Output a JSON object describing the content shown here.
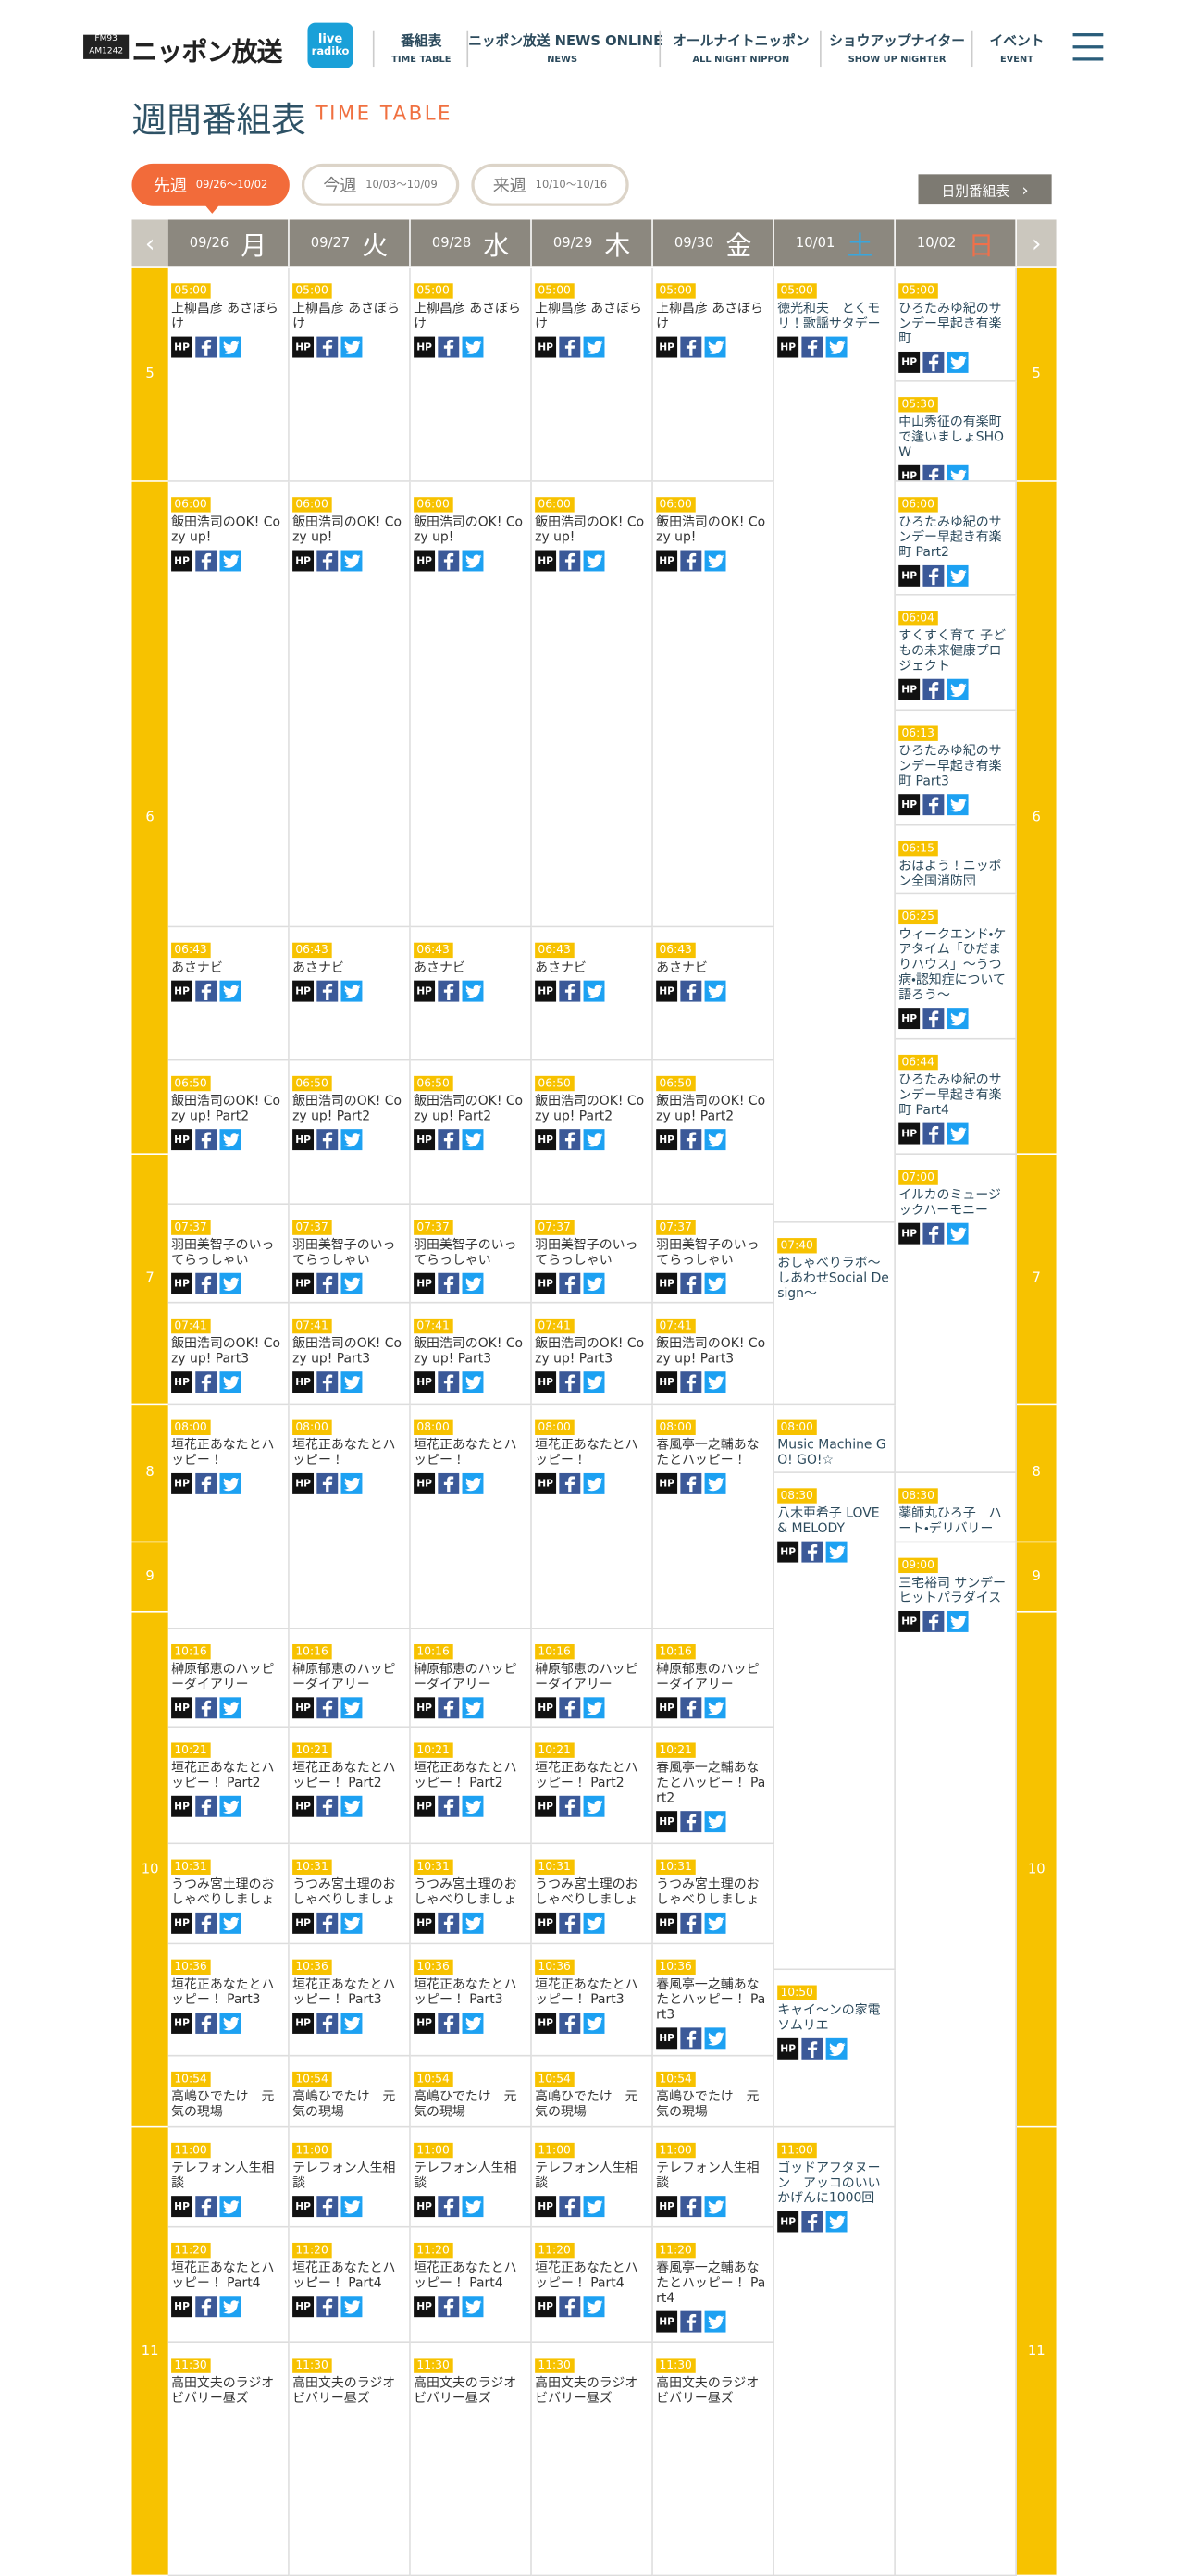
{
  "header": {
    "logo_sub": [
      "FM93",
      "AM1242"
    ],
    "logo": "ニッポン放送",
    "radiko": [
      "live",
      "radiko"
    ],
    "nav": [
      {
        "label": "番組表",
        "sub": "TIME TABLE"
      },
      {
        "label": "ニッポン放送 NEWS ONLINE",
        "sub": "NEWS"
      },
      {
        "label": "オールナイトニッポン",
        "sub": "ALL NIGHT NIPPON"
      },
      {
        "label": "ショウアップナイター",
        "sub": "SHOW UP NIGHTER"
      },
      {
        "label": "イベント",
        "sub": "EVENT"
      }
    ]
  },
  "title": "週間番組表",
  "title_en": "TIME TABLE",
  "weeks": [
    {
      "label": "先週",
      "range": "09/26〜10/02",
      "active": true
    },
    {
      "label": "今週",
      "range": "10/03〜10/09",
      "active": false
    },
    {
      "label": "来週",
      "range": "10/10〜10/16",
      "active": false
    }
  ],
  "daily_button": "日別番組表",
  "hp_label": "HP",
  "hours": [
    5,
    6,
    7,
    8,
    9,
    10,
    11
  ],
  "days": [
    {
      "date": "09/26",
      "weekday": "月",
      "programs": [
        {
          "time": "05:00",
          "title": "上柳昌彦 あさぼらけ",
          "sns": true
        },
        {
          "time": "06:00",
          "title": "飯田浩司のOK! Cozy up!",
          "sns": true
        },
        {
          "time": "06:43",
          "title": "あさナビ",
          "sns": true
        },
        {
          "time": "06:50",
          "title": "飯田浩司のOK! Cozy up! Part2",
          "sns": true
        },
        {
          "time": "07:37",
          "title": "羽田美智子のいってらっしゃい",
          "sns": true
        },
        {
          "time": "07:41",
          "title": "飯田浩司のOK! Cozy up! Part3",
          "sns": true
        },
        {
          "time": "08:00",
          "title": "垣花正あなたとハッピー！",
          "sns": true
        },
        {
          "time": "10:16",
          "title": "榊原郁恵のハッピーダイアリー",
          "sns": true
        },
        {
          "time": "10:21",
          "title": "垣花正あなたとハッピー！ Part2",
          "sns": true
        },
        {
          "time": "10:31",
          "title": "うつみ宮土理のおしゃべりしましょ",
          "sns": true
        },
        {
          "time": "10:36",
          "title": "垣花正あなたとハッピー！ Part3",
          "sns": true
        },
        {
          "time": "10:54",
          "title": "高嶋ひでたけ　元気の現場",
          "sns": false
        },
        {
          "time": "11:00",
          "title": "テレフォン人生相談",
          "sns": true
        },
        {
          "time": "11:20",
          "title": "垣花正あなたとハッピー！ Part4",
          "sns": true
        },
        {
          "time": "11:30",
          "title": "高田文夫のラジオビバリー昼ズ",
          "sns": false
        }
      ]
    },
    {
      "date": "09/27",
      "weekday": "火",
      "programs": [
        {
          "time": "05:00",
          "title": "上柳昌彦 あさぼらけ",
          "sns": true
        },
        {
          "time": "06:00",
          "title": "飯田浩司のOK! Cozy up!",
          "sns": true
        },
        {
          "time": "06:43",
          "title": "あさナビ",
          "sns": true
        },
        {
          "time": "06:50",
          "title": "飯田浩司のOK! Cozy up! Part2",
          "sns": true
        },
        {
          "time": "07:37",
          "title": "羽田美智子のいってらっしゃい",
          "sns": true
        },
        {
          "time": "07:41",
          "title": "飯田浩司のOK! Cozy up! Part3",
          "sns": true
        },
        {
          "time": "08:00",
          "title": "垣花正あなたとハッピー！",
          "sns": true
        },
        {
          "time": "10:16",
          "title": "榊原郁恵のハッピーダイアリー",
          "sns": true
        },
        {
          "time": "10:21",
          "title": "垣花正あなたとハッピー！ Part2",
          "sns": true
        },
        {
          "time": "10:31",
          "title": "うつみ宮土理のおしゃべりしましょ",
          "sns": true
        },
        {
          "time": "10:36",
          "title": "垣花正あなたとハッピー！ Part3",
          "sns": true
        },
        {
          "time": "10:54",
          "title": "高嶋ひでたけ　元気の現場",
          "sns": false
        },
        {
          "time": "11:00",
          "title": "テレフォン人生相談",
          "sns": true
        },
        {
          "time": "11:20",
          "title": "垣花正あなたとハッピー！ Part4",
          "sns": true
        },
        {
          "time": "11:30",
          "title": "高田文夫のラジオビバリー昼ズ",
          "sns": false
        }
      ]
    },
    {
      "date": "09/28",
      "weekday": "水",
      "programs": [
        {
          "time": "05:00",
          "title": "上柳昌彦 あさぼらけ",
          "sns": true
        },
        {
          "time": "06:00",
          "title": "飯田浩司のOK! Cozy up!",
          "sns": true
        },
        {
          "time": "06:43",
          "title": "あさナビ",
          "sns": true
        },
        {
          "time": "06:50",
          "title": "飯田浩司のOK! Cozy up! Part2",
          "sns": true
        },
        {
          "time": "07:37",
          "title": "羽田美智子のいってらっしゃい",
          "sns": true
        },
        {
          "time": "07:41",
          "title": "飯田浩司のOK! Cozy up! Part3",
          "sns": true
        },
        {
          "time": "08:00",
          "title": "垣花正あなたとハッピー！",
          "sns": true
        },
        {
          "time": "10:16",
          "title": "榊原郁恵のハッピーダイアリー",
          "sns": true
        },
        {
          "time": "10:21",
          "title": "垣花正あなたとハッピー！ Part2",
          "sns": true
        },
        {
          "time": "10:31",
          "title": "うつみ宮土理のおしゃべりしましょ",
          "sns": true
        },
        {
          "time": "10:36",
          "title": "垣花正あなたとハッピー！ Part3",
          "sns": true
        },
        {
          "time": "10:54",
          "title": "高嶋ひでたけ　元気の現場",
          "sns": false
        },
        {
          "time": "11:00",
          "title": "テレフォン人生相談",
          "sns": true
        },
        {
          "time": "11:20",
          "title": "垣花正あなたとハッピー！ Part4",
          "sns": true
        },
        {
          "time": "11:30",
          "title": "高田文夫のラジオビバリー昼ズ",
          "sns": false
        }
      ]
    },
    {
      "date": "09/29",
      "weekday": "木",
      "programs": [
        {
          "time": "05:00",
          "title": "上柳昌彦 あさぼらけ",
          "sns": true
        },
        {
          "time": "06:00",
          "title": "飯田浩司のOK! Cozy up!",
          "sns": true
        },
        {
          "time": "06:43",
          "title": "あさナビ",
          "sns": true
        },
        {
          "time": "06:50",
          "title": "飯田浩司のOK! Cozy up! Part2",
          "sns": true
        },
        {
          "time": "07:37",
          "title": "羽田美智子のいってらっしゃい",
          "sns": true
        },
        {
          "time": "07:41",
          "title": "飯田浩司のOK! Cozy up! Part3",
          "sns": true
        },
        {
          "time": "08:00",
          "title": "垣花正あなたとハッピー！",
          "sns": true
        },
        {
          "time": "10:16",
          "title": "榊原郁恵のハッピーダイアリー",
          "sns": true
        },
        {
          "time": "10:21",
          "title": "垣花正あなたとハッピー！ Part2",
          "sns": true
        },
        {
          "time": "10:31",
          "title": "うつみ宮土理のおしゃべりしましょ",
          "sns": true
        },
        {
          "time": "10:36",
          "title": "垣花正あなたとハッピー！ Part3",
          "sns": true
        },
        {
          "time": "10:54",
          "title": "高嶋ひでたけ　元気の現場",
          "sns": false
        },
        {
          "time": "11:00",
          "title": "テレフォン人生相談",
          "sns": true
        },
        {
          "time": "11:20",
          "title": "垣花正あなたとハッピー！ Part4",
          "sns": true
        },
        {
          "time": "11:30",
          "title": "高田文夫のラジオビバリー昼ズ",
          "sns": false
        }
      ]
    },
    {
      "date": "09/30",
      "weekday": "金",
      "programs": [
        {
          "time": "05:00",
          "title": "上柳昌彦 あさぼらけ",
          "sns": true
        },
        {
          "time": "06:00",
          "title": "飯田浩司のOK! Cozy up!",
          "sns": true
        },
        {
          "time": "06:43",
          "title": "あさナビ",
          "sns": true
        },
        {
          "time": "06:50",
          "title": "飯田浩司のOK! Cozy up! Part2",
          "sns": true
        },
        {
          "time": "07:37",
          "title": "羽田美智子のいってらっしゃい",
          "sns": true
        },
        {
          "time": "07:41",
          "title": "飯田浩司のOK! Cozy up! Part3",
          "sns": true
        },
        {
          "time": "08:00",
          "title": "春風亭一之輔あなたとハッピー！",
          "sns": true
        },
        {
          "time": "10:16",
          "title": "榊原郁恵のハッピーダイアリー",
          "sns": true
        },
        {
          "time": "10:21",
          "title": "春風亭一之輔あなたとハッピー！ Part2",
          "sns": true
        },
        {
          "time": "10:31",
          "title": "うつみ宮土理のおしゃべりしましょ",
          "sns": true
        },
        {
          "time": "10:36",
          "title": "春風亭一之輔あなたとハッピー！ Part3",
          "sns": true
        },
        {
          "time": "10:54",
          "title": "高嶋ひでたけ　元気の現場",
          "sns": false
        },
        {
          "time": "11:00",
          "title": "テレフォン人生相談",
          "sns": true
        },
        {
          "time": "11:20",
          "title": "春風亭一之輔あなたとハッピー！ Part4",
          "sns": true
        },
        {
          "time": "11:30",
          "title": "高田文夫のラジオビバリー昼ズ",
          "sns": false
        }
      ]
    },
    {
      "date": "10/01",
      "weekday": "土",
      "programs": [
        {
          "time": "05:00",
          "title": "徳光和夫　とくモリ！歌謡サタデー",
          "sns": true
        },
        {
          "time": "07:40",
          "title": "おしゃべりラボ〜しあわせSocial Design〜",
          "sns": false
        },
        {
          "time": "08:00",
          "title": "Music Machine GO! GO!☆",
          "sns": false
        },
        {
          "time": "08:30",
          "title": "八木亜希子 LOVE & MELODY",
          "sns": true
        },
        {
          "time": "10:50",
          "title": "キャイ〜ンの家電ソムリエ",
          "sns": true
        },
        {
          "time": "11:00",
          "title": "ゴッドアフタヌーン　アッコのいいかげんに1000回",
          "sns": true
        }
      ]
    },
    {
      "date": "10/02",
      "weekday": "日",
      "programs": [
        {
          "time": "05:00",
          "title": "ひろたみゆ紀のサンデー早起き有楽町",
          "sns": true
        },
        {
          "time": "05:30",
          "title": "中山秀征の有楽町で逢いましょSHOW",
          "sns": true
        },
        {
          "time": "06:00",
          "title": "ひろたみゆ紀のサンデー早起き有楽町 Part2",
          "sns": true
        },
        {
          "time": "06:04",
          "title": "すくすく育て 子どもの未来健康プロジェクト",
          "sns": true
        },
        {
          "time": "06:13",
          "title": "ひろたみゆ紀のサンデー早起き有楽町 Part3",
          "sns": true
        },
        {
          "time": "06:15",
          "title": "おはよう！ニッポン全国消防団",
          "sns": false
        },
        {
          "time": "06:25",
          "title": "ウィークエンド・ケアタイム「ひだまりハウス」〜うつ病・認知症について語ろう〜",
          "sns": true
        },
        {
          "time": "06:44",
          "title": "ひろたみゆ紀のサンデー早起き有楽町 Part4",
          "sns": true
        },
        {
          "time": "07:00",
          "title": "イルカのミュージックハーモニー",
          "sns": true
        },
        {
          "time": "08:30",
          "title": "薬師丸ひろ子　ハート・デリバリー",
          "sns": false
        },
        {
          "time": "09:00",
          "title": "三宅裕司 サンデーヒットパラダイス",
          "sns": true
        }
      ]
    }
  ]
}
